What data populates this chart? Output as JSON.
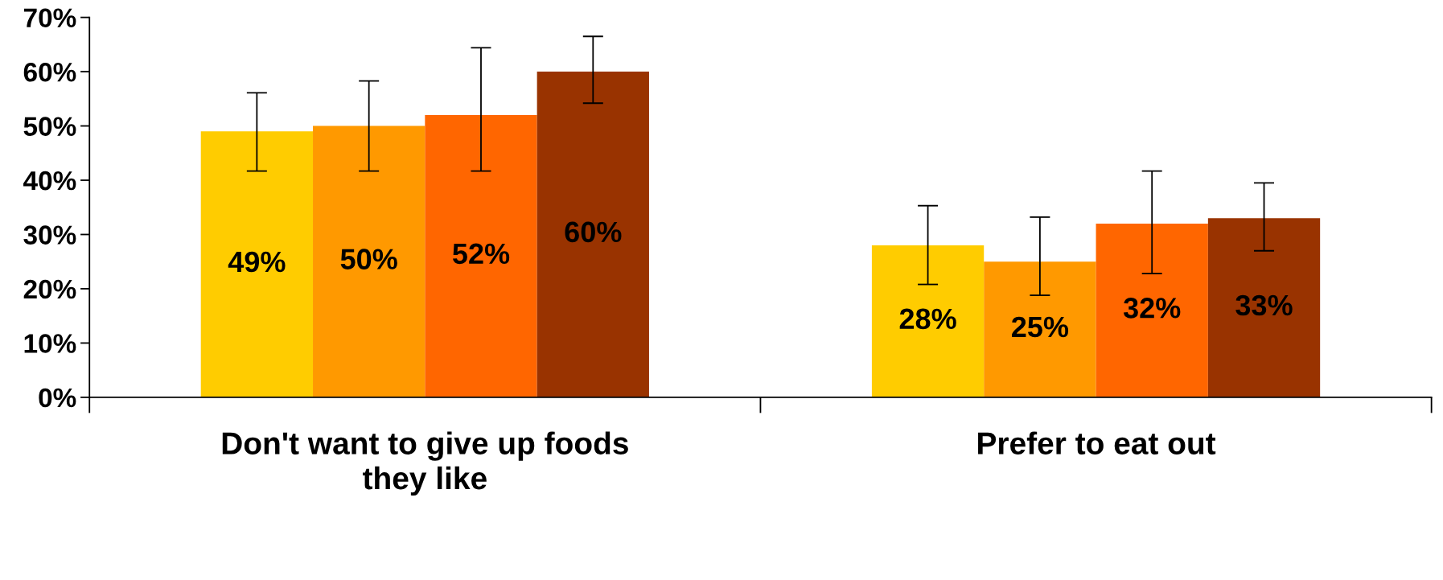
{
  "chart_data": {
    "type": "bar",
    "categories": [
      "Don't want to give up foods they like",
      "Prefer to eat out"
    ],
    "series": [
      {
        "color": "#ffcc00",
        "values": [
          49,
          28
        ],
        "value_labels": [
          "49%",
          "28%"
        ],
        "errors": [
          [
            41.7,
            56.1
          ],
          [
            20.8,
            35.3
          ]
        ]
      },
      {
        "color": "#ff9900",
        "values": [
          50,
          25
        ],
        "value_labels": [
          "50%",
          "25%"
        ],
        "errors": [
          [
            41.7,
            58.3
          ],
          [
            18.8,
            33.2
          ]
        ]
      },
      {
        "color": "#ff6600",
        "values": [
          52,
          32
        ],
        "value_labels": [
          "52%",
          "32%"
        ],
        "errors": [
          [
            41.7,
            64.4
          ],
          [
            22.8,
            41.7
          ]
        ]
      },
      {
        "color": "#993300",
        "values": [
          60,
          33
        ],
        "value_labels": [
          "60%",
          "33%"
        ],
        "errors": [
          [
            54.2,
            66.5
          ],
          [
            27.0,
            39.5
          ]
        ]
      }
    ],
    "ylim": [
      0,
      70
    ],
    "yticks": [
      {
        "value": 0,
        "label": "0%"
      },
      {
        "value": 10,
        "label": "10%"
      },
      {
        "value": 20,
        "label": "20%"
      },
      {
        "value": 30,
        "label": "30%"
      },
      {
        "value": 40,
        "label": "40%"
      },
      {
        "value": 50,
        "label": "50%"
      },
      {
        "value": 60,
        "label": "60%"
      },
      {
        "value": 70,
        "label": "70%"
      }
    ],
    "grid": false,
    "legend": false
  }
}
